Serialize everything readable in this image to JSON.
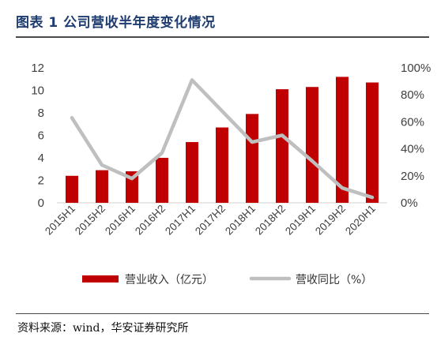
{
  "header": {
    "title": "图表 1 公司营收半年度变化情况"
  },
  "footer": {
    "source": "资料来源：wind，华安证券研究所"
  },
  "chart_data": {
    "type": "bar",
    "categories": [
      "2015H1",
      "2015H2",
      "2016H1",
      "2016H2",
      "2017H1",
      "2017H2",
      "2018H1",
      "2018H2",
      "2019H1",
      "2019H2",
      "2020H1"
    ],
    "series": [
      {
        "name": "营业收入（亿元）",
        "type": "bar",
        "axis": "left",
        "color": "#c00000",
        "values": [
          2.4,
          2.9,
          2.8,
          4.0,
          5.4,
          6.7,
          7.9,
          10.1,
          10.3,
          11.2,
          10.7
        ]
      },
      {
        "name": "营收同比（%）",
        "type": "line",
        "axis": "right",
        "color": "#bfbfbf",
        "values": [
          63,
          28,
          18,
          37,
          91,
          68,
          45,
          50,
          31,
          11,
          4
        ]
      }
    ],
    "left_axis": {
      "ylim": [
        0,
        12
      ],
      "ticks": [
        "0",
        "2",
        "4",
        "6",
        "8",
        "10",
        "12"
      ]
    },
    "right_axis": {
      "ylim": [
        0,
        100
      ],
      "ticks": [
        "0%",
        "20%",
        "40%",
        "60%",
        "80%",
        "100%"
      ]
    },
    "legend": {
      "position": "bottom"
    },
    "grid": false
  }
}
